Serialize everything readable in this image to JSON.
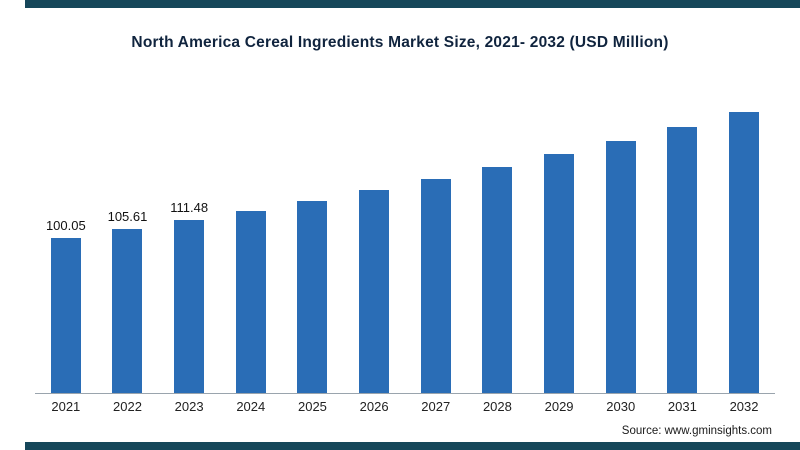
{
  "title": "North America Cereal Ingredients Market Size, 2021- 2032 (USD Million)",
  "source": "Source: www.gminsights.com",
  "colors": {
    "bar": "#2a6db6",
    "accent_strip": "#16475a",
    "title_text": "#10243e",
    "axis_line": "#9aa4ad"
  },
  "chart_data": {
    "type": "bar",
    "title": "North America Cereal Ingredients Market Size, 2021- 2032 (USD Million)",
    "xlabel": "",
    "ylabel": "USD Million",
    "legend": "none",
    "grid": false,
    "categories": [
      "2021",
      "2022",
      "2023",
      "2024",
      "2025",
      "2026",
      "2027",
      "2028",
      "2029",
      "2030",
      "2031",
      "2032"
    ],
    "values": [
      100.05,
      105.61,
      111.48,
      117.68,
      124.22,
      131.13,
      138.42,
      146.12,
      154.25,
      162.83,
      171.88,
      181.44
    ],
    "data_labels": [
      "100.05",
      "105.61",
      "111.48",
      "",
      "",
      "",
      "",
      "",
      "",
      "",
      "",
      ""
    ],
    "ylim": [
      0,
      190
    ],
    "note": "Only the first three bars carry printed data labels; remaining values estimated from bar heights (~5.56% CAGR)."
  }
}
